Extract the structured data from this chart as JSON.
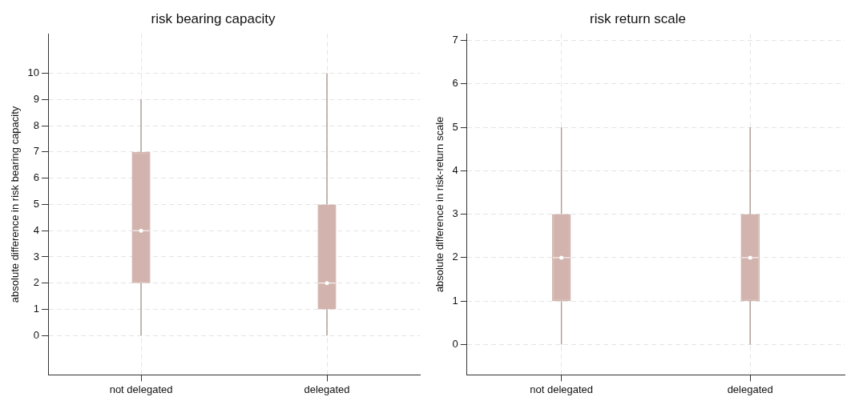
{
  "chart_data": [
    {
      "type": "box",
      "title": "risk bearing capacity",
      "ylabel": "absolute difference in risk bearing capacity",
      "categories": [
        "not delegated",
        "delegated"
      ],
      "color": "#d2b3ad",
      "ylim": [
        -1.5,
        11.5
      ],
      "yticks": [
        0,
        1,
        2,
        3,
        4,
        5,
        6,
        7,
        8,
        9,
        10
      ],
      "grid": true,
      "boxes": [
        {
          "low": 0,
          "q1": 2,
          "median": 4,
          "q3": 7,
          "high": 9
        },
        {
          "low": 0,
          "q1": 1,
          "median": 2,
          "q3": 5,
          "high": 10
        }
      ]
    },
    {
      "type": "box",
      "title": "risk return scale",
      "ylabel": "absolute difference in risk-return scale",
      "categories": [
        "not delegated",
        "delegated"
      ],
      "color": "#d2b3ad",
      "ylim": [
        -0.7,
        7.15
      ],
      "yticks": [
        0,
        1,
        2,
        3,
        4,
        5,
        6,
        7
      ],
      "grid": true,
      "boxes": [
        {
          "low": 0,
          "q1": 1,
          "median": 2,
          "q3": 3,
          "high": 5
        },
        {
          "low": 0,
          "q1": 1,
          "median": 2,
          "q3": 3,
          "high": 5
        }
      ]
    }
  ]
}
